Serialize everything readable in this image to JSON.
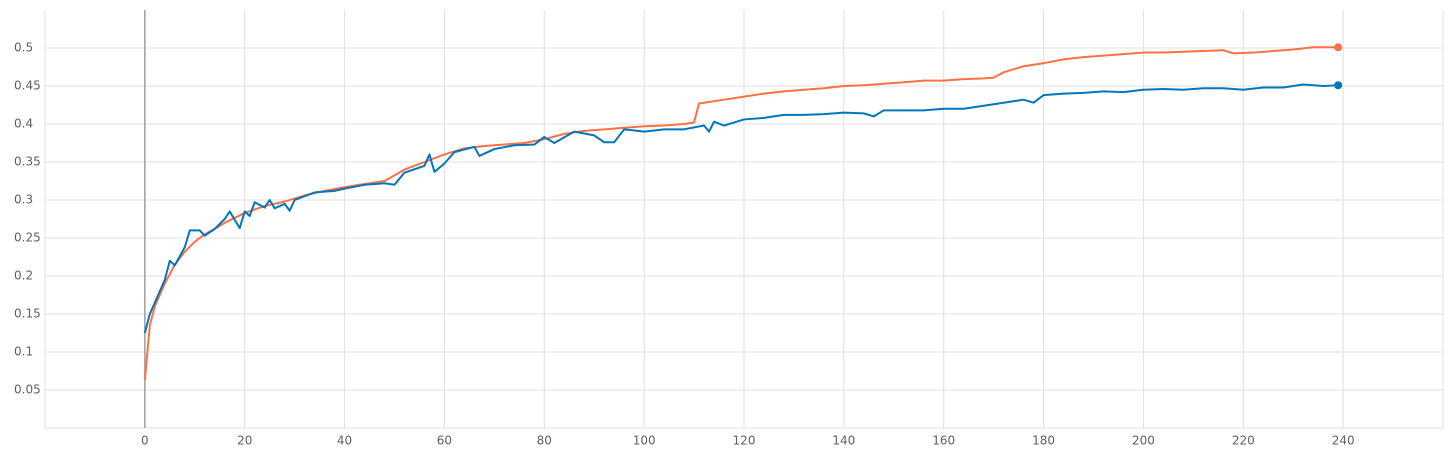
{
  "chart_data": {
    "type": "line",
    "xlim": [
      -20,
      260
    ],
    "ylim": [
      0,
      0.55
    ],
    "xticks": [
      0,
      20,
      40,
      60,
      80,
      100,
      120,
      140,
      160,
      180,
      200,
      220,
      240
    ],
    "yticks": [
      0.05,
      0.1,
      0.15,
      0.2,
      0.25,
      0.3,
      0.35,
      0.4,
      0.45,
      0.5
    ],
    "grid": true,
    "series": [
      {
        "color": "#ff7043",
        "x": [
          0,
          1,
          2,
          4,
          6,
          8,
          10,
          12,
          14,
          16,
          20,
          24,
          28,
          32,
          36,
          40,
          44,
          48,
          52,
          56,
          60,
          64,
          68,
          72,
          76,
          80,
          84,
          88,
          92,
          96,
          100,
          104,
          108,
          110,
          111,
          116,
          120,
          124,
          128,
          132,
          136,
          140,
          144,
          148,
          152,
          156,
          160,
          164,
          168,
          170,
          172,
          176,
          180,
          184,
          188,
          192,
          196,
          200,
          204,
          208,
          212,
          216,
          218,
          222,
          226,
          230,
          234,
          239
        ],
        "values": [
          0.063,
          0.135,
          0.16,
          0.19,
          0.215,
          0.232,
          0.245,
          0.255,
          0.262,
          0.27,
          0.283,
          0.292,
          0.298,
          0.306,
          0.312,
          0.317,
          0.321,
          0.325,
          0.34,
          0.35,
          0.36,
          0.368,
          0.371,
          0.373,
          0.375,
          0.38,
          0.387,
          0.391,
          0.393,
          0.395,
          0.397,
          0.398,
          0.4,
          0.402,
          0.427,
          0.432,
          0.436,
          0.44,
          0.443,
          0.445,
          0.447,
          0.45,
          0.451,
          0.453,
          0.455,
          0.457,
          0.457,
          0.459,
          0.46,
          0.461,
          0.468,
          0.476,
          0.48,
          0.485,
          0.488,
          0.49,
          0.492,
          0.494,
          0.494,
          0.495,
          0.496,
          0.497,
          0.493,
          0.494,
          0.496,
          0.498,
          0.501,
          0.501
        ]
      },
      {
        "color": "#0077bb",
        "x": [
          0,
          1,
          2,
          4,
          5,
          6,
          8,
          9,
          11,
          12,
          14,
          16,
          17,
          19,
          20,
          21,
          22,
          24,
          25,
          26,
          28,
          29,
          30,
          34,
          38,
          40,
          44,
          48,
          50,
          52,
          56,
          57,
          58,
          60,
          62,
          66,
          67,
          70,
          74,
          78,
          80,
          82,
          86,
          90,
          92,
          94,
          96,
          100,
          104,
          108,
          112,
          113,
          114,
          116,
          120,
          124,
          128,
          132,
          136,
          140,
          144,
          146,
          148,
          152,
          156,
          160,
          164,
          168,
          172,
          176,
          178,
          180,
          184,
          188,
          192,
          196,
          200,
          204,
          208,
          212,
          216,
          220,
          224,
          228,
          232,
          236,
          239
        ],
        "values": [
          0.125,
          0.15,
          0.165,
          0.195,
          0.22,
          0.214,
          0.238,
          0.26,
          0.26,
          0.253,
          0.262,
          0.275,
          0.285,
          0.263,
          0.285,
          0.279,
          0.297,
          0.29,
          0.3,
          0.289,
          0.295,
          0.286,
          0.3,
          0.31,
          0.312,
          0.315,
          0.32,
          0.322,
          0.32,
          0.336,
          0.345,
          0.36,
          0.337,
          0.348,
          0.363,
          0.37,
          0.358,
          0.367,
          0.372,
          0.373,
          0.383,
          0.375,
          0.39,
          0.385,
          0.376,
          0.376,
          0.393,
          0.39,
          0.393,
          0.393,
          0.398,
          0.39,
          0.403,
          0.398,
          0.406,
          0.408,
          0.412,
          0.412,
          0.413,
          0.415,
          0.414,
          0.41,
          0.418,
          0.418,
          0.418,
          0.42,
          0.42,
          0.424,
          0.428,
          0.432,
          0.428,
          0.438,
          0.44,
          0.441,
          0.443,
          0.442,
          0.445,
          0.446,
          0.445,
          0.447,
          0.447,
          0.445,
          0.448,
          0.448,
          0.452,
          0.45,
          0.451
        ]
      }
    ]
  }
}
